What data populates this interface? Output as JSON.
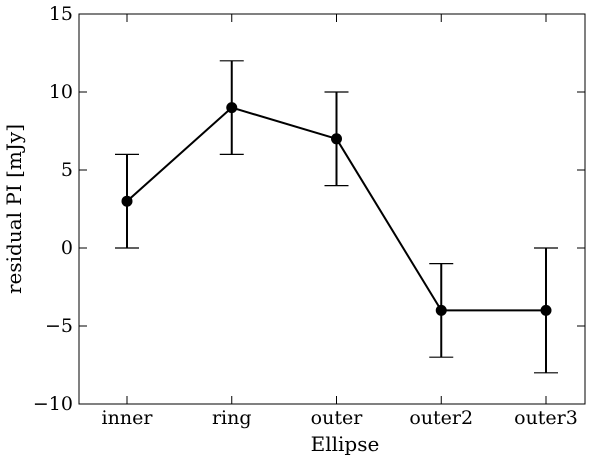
{
  "chart_data": {
    "type": "line",
    "title": "",
    "xlabel": "Ellipse",
    "ylabel": "residual PI [mJy]",
    "categories": [
      "inner",
      "ring",
      "outer",
      "outer2",
      "outer3"
    ],
    "series": [
      {
        "values": [
          3,
          9,
          7,
          -4,
          -4
        ],
        "error_low": [
          0,
          6,
          4,
          -7,
          -8
        ],
        "error_high": [
          6,
          12,
          10,
          -1,
          0
        ]
      }
    ],
    "ylim": [
      -10,
      15
    ],
    "yticks": [
      -10,
      -5,
      0,
      5,
      10,
      15
    ],
    "ytick_labels": [
      "−10",
      "−5",
      "0",
      "5",
      "10",
      "15"
    ],
    "grid": false,
    "legend": "none",
    "colors": {
      "line": "#000000",
      "marker": "#000000",
      "axes": "#000000"
    }
  }
}
